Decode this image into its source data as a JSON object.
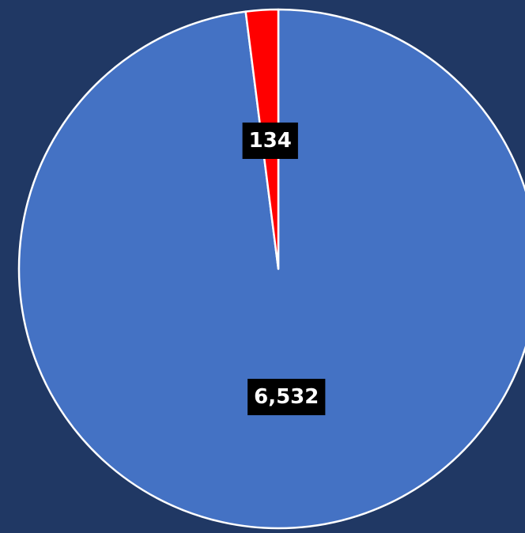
{
  "chart_data": {
    "type": "pie",
    "values": [
      6532,
      134
    ],
    "value_labels": [
      "6,532",
      "134"
    ],
    "colors": [
      "#4472c4",
      "#ff0000"
    ]
  }
}
